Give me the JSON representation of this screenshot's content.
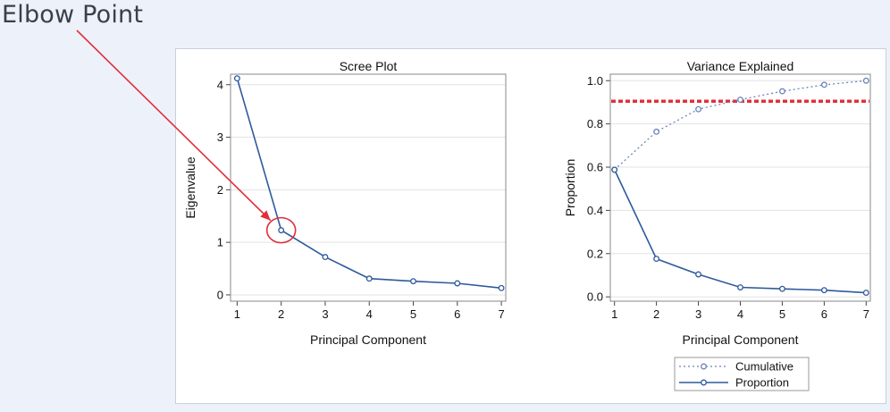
{
  "annotation": {
    "label": "Elbow Point",
    "arrow_color": "#e0303a"
  },
  "chart_data": [
    {
      "type": "line",
      "title": "Scree Plot",
      "xlabel": "Principal Component",
      "ylabel": "Eigenvalue",
      "x": [
        1,
        2,
        3,
        4,
        5,
        6,
        7
      ],
      "xticks": [
        "1",
        "2",
        "3",
        "4",
        "5",
        "6",
        "7"
      ],
      "yticks": [
        "0",
        "1",
        "2",
        "3",
        "4"
      ],
      "xlim": [
        0.85,
        7.1
      ],
      "ylim": [
        -0.12,
        4.2
      ],
      "grid": "horizontal",
      "series": [
        {
          "values": [
            4.12,
            1.23,
            0.72,
            0.31,
            0.26,
            0.22,
            0.13
          ],
          "color": "#2e5a9c",
          "style": "solid"
        }
      ],
      "highlight": {
        "x": 2,
        "y": 1.23,
        "label": "Elbow Point"
      }
    },
    {
      "type": "line",
      "title": "Variance Explained",
      "xlabel": "Principal Component",
      "ylabel": "Proportion",
      "x": [
        1,
        2,
        3,
        4,
        5,
        6,
        7
      ],
      "xticks": [
        "1",
        "2",
        "3",
        "4",
        "5",
        "6",
        "7"
      ],
      "yticks": [
        "0.0",
        "0.2",
        "0.4",
        "0.6",
        "0.8",
        "1.0"
      ],
      "xlim": [
        0.9,
        7.1
      ],
      "ylim": [
        -0.02,
        1.03
      ],
      "grid": "horizontal",
      "legend_position": "bottom",
      "series": [
        {
          "name": "Cumulative",
          "values": [
            0.588,
            0.764,
            0.868,
            0.912,
            0.951,
            0.981,
            1.0
          ],
          "color": "#6a85b8",
          "style": "dotted"
        },
        {
          "name": "Proportion",
          "values": [
            0.588,
            0.176,
            0.104,
            0.044,
            0.037,
            0.031,
            0.019
          ],
          "color": "#2e5a9c",
          "style": "solid"
        }
      ],
      "reference_line": {
        "y": 0.905,
        "color": "#e0303a",
        "style": "dashed"
      }
    }
  ]
}
